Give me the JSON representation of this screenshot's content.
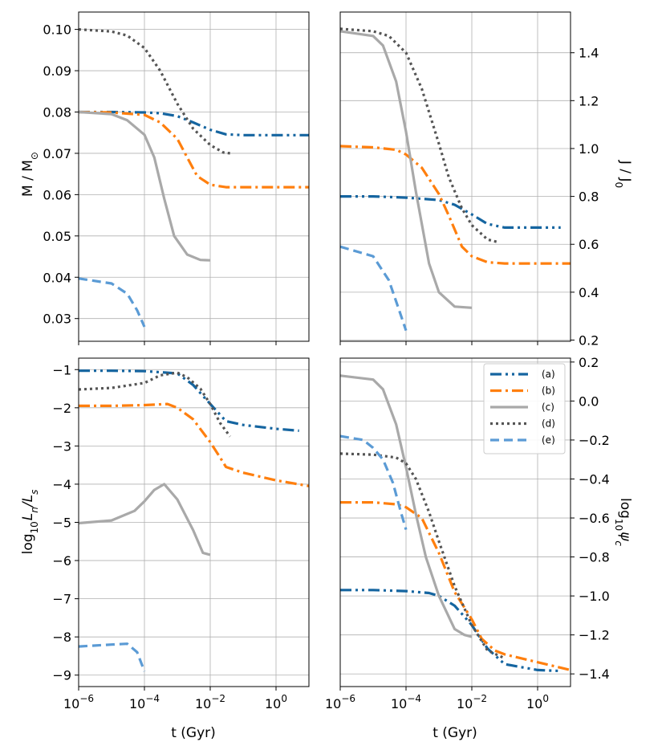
{
  "chart_data": [
    {
      "panel": "top-left",
      "type": "line",
      "ylabel": "M / M☉",
      "xlabel": "",
      "xscale": "log",
      "xlim": [
        1e-06,
        10
      ],
      "ylim": [
        0.0245,
        0.1042
      ],
      "yticks": [
        0.03,
        0.04,
        0.05,
        0.06,
        0.07,
        0.08,
        0.09,
        0.1
      ],
      "ytick_labels": [
        "0.03",
        "0.04",
        "0.05",
        "0.06",
        "0.07",
        "0.08",
        "0.09",
        "0.10"
      ],
      "y_axis_side": "left",
      "series": [
        {
          "key": "a",
          "x": [
            1e-06,
            1e-05,
            0.0001,
            0.0003,
            0.001,
            0.003,
            0.01,
            0.03,
            0.1,
            10
          ],
          "y": [
            0.08,
            0.08,
            0.0799,
            0.0797,
            0.079,
            0.0775,
            0.0757,
            0.0746,
            0.0744,
            0.0744
          ]
        },
        {
          "key": "b",
          "x": [
            1e-06,
            1e-05,
            0.0001,
            0.0003,
            0.001,
            0.002,
            0.004,
            0.01,
            0.03,
            10
          ],
          "y": [
            0.08,
            0.0799,
            0.0793,
            0.0775,
            0.0735,
            0.069,
            0.0645,
            0.0624,
            0.0618,
            0.0618
          ]
        },
        {
          "key": "c",
          "x": [
            1e-06,
            1e-05,
            3e-05,
            0.0001,
            0.0002,
            0.0004,
            0.0008,
            0.002,
            0.005,
            0.01
          ],
          "y": [
            0.08,
            0.0795,
            0.078,
            0.0745,
            0.069,
            0.059,
            0.05,
            0.0455,
            0.0442,
            0.0441
          ]
        },
        {
          "key": "d",
          "x": [
            1e-06,
            1e-05,
            3e-05,
            0.0001,
            0.0003,
            0.001,
            0.003,
            0.01,
            0.025,
            0.04
          ],
          "y": [
            0.1,
            0.0995,
            0.0985,
            0.0955,
            0.09,
            0.082,
            0.076,
            0.072,
            0.0702,
            0.07
          ]
        },
        {
          "key": "e",
          "x": [
            1e-06,
            1e-05,
            3e-05,
            6e-05,
            0.0001
          ],
          "y": [
            0.0397,
            0.0385,
            0.036,
            0.032,
            0.028
          ]
        }
      ]
    },
    {
      "panel": "top-right",
      "type": "line",
      "ylabel": "J / J0",
      "xlabel": "",
      "xscale": "log",
      "xlim": [
        1e-06,
        10
      ],
      "ylim": [
        0.195,
        1.57
      ],
      "yticks": [
        0.2,
        0.4,
        0.6,
        0.8,
        1.0,
        1.2,
        1.4
      ],
      "ytick_labels": [
        "0.2",
        "0.4",
        "0.6",
        "0.8",
        "1.0",
        "1.2",
        "1.4"
      ],
      "y_axis_side": "right",
      "series": [
        {
          "key": "a",
          "x": [
            1e-06,
            1e-05,
            0.0001,
            0.001,
            0.003,
            0.01,
            0.03,
            0.1,
            5
          ],
          "y": [
            0.8,
            0.8,
            0.795,
            0.785,
            0.765,
            0.725,
            0.685,
            0.67,
            0.67
          ]
        },
        {
          "key": "b",
          "x": [
            1e-06,
            1e-05,
            5e-05,
            0.0001,
            0.0003,
            0.001,
            0.002,
            0.005,
            0.01,
            0.03,
            0.1,
            10
          ],
          "y": [
            1.01,
            1.005,
            0.995,
            0.975,
            0.92,
            0.81,
            0.72,
            0.59,
            0.55,
            0.525,
            0.52,
            0.52
          ]
        },
        {
          "key": "c",
          "x": [
            1e-06,
            1e-05,
            2e-05,
            5e-05,
            0.0001,
            0.0002,
            0.0005,
            0.001,
            0.003,
            0.01
          ],
          "y": [
            1.49,
            1.47,
            1.43,
            1.28,
            1.07,
            0.82,
            0.52,
            0.4,
            0.34,
            0.335
          ]
        },
        {
          "key": "d",
          "x": [
            1e-06,
            1e-05,
            3e-05,
            0.0001,
            0.0003,
            0.001,
            0.002,
            0.005,
            0.01,
            0.03,
            0.06
          ],
          "y": [
            1.5,
            1.49,
            1.47,
            1.4,
            1.25,
            1.02,
            0.88,
            0.75,
            0.68,
            0.62,
            0.61
          ]
        },
        {
          "key": "e",
          "x": [
            1e-06,
            1e-05,
            3e-05,
            6e-05,
            0.0001
          ],
          "y": [
            0.59,
            0.55,
            0.45,
            0.33,
            0.24
          ]
        }
      ]
    },
    {
      "panel": "bottom-left",
      "type": "line",
      "ylabel": "log10 Ln/Ls",
      "xlabel": "t (Gyr)",
      "xscale": "log",
      "xlim": [
        1e-06,
        10
      ],
      "ylim": [
        -9.3,
        -0.7
      ],
      "yticks": [
        -9,
        -8,
        -7,
        -6,
        -5,
        -4,
        -3,
        -2,
        -1
      ],
      "ytick_labels": [
        "−9",
        "−8",
        "−7",
        "−6",
        "−5",
        "−4",
        "−3",
        "−2",
        "−1"
      ],
      "y_axis_side": "left",
      "series": [
        {
          "key": "a",
          "x": [
            1e-06,
            1e-05,
            0.0001,
            0.001,
            0.003,
            0.01,
            0.03,
            0.1,
            1,
            5
          ],
          "y": [
            -1.03,
            -1.03,
            -1.04,
            -1.1,
            -1.4,
            -1.9,
            -2.35,
            -2.45,
            -2.55,
            -2.6
          ]
        },
        {
          "key": "b",
          "x": [
            1e-06,
            1e-05,
            0.0001,
            0.0005,
            0.001,
            0.003,
            0.01,
            0.02,
            0.03,
            0.1,
            1,
            10
          ],
          "y": [
            -1.95,
            -1.95,
            -1.93,
            -1.9,
            -2.0,
            -2.3,
            -2.9,
            -3.3,
            -3.55,
            -3.7,
            -3.9,
            -4.05
          ]
        },
        {
          "key": "c",
          "x": [
            1e-06,
            1e-05,
            5e-05,
            0.0001,
            0.0002,
            0.0004,
            0.001,
            0.003,
            0.006,
            0.01
          ],
          "y": [
            -5.02,
            -4.95,
            -4.7,
            -4.45,
            -4.15,
            -4.0,
            -4.4,
            -5.2,
            -5.8,
            -5.85
          ]
        },
        {
          "key": "d",
          "x": [
            1e-06,
            1e-05,
            0.0001,
            0.0003,
            0.001,
            0.002,
            0.005,
            0.01,
            0.02,
            0.04
          ],
          "y": [
            -1.52,
            -1.48,
            -1.35,
            -1.15,
            -1.08,
            -1.2,
            -1.5,
            -1.9,
            -2.4,
            -2.75
          ]
        },
        {
          "key": "e",
          "x": [
            1e-06,
            1e-05,
            3e-05,
            6e-05,
            0.0001
          ],
          "y": [
            -8.25,
            -8.2,
            -8.18,
            -8.4,
            -8.9
          ]
        }
      ]
    },
    {
      "panel": "bottom-right",
      "type": "line",
      "ylabel": "log10 ψc",
      "xlabel": "t (Gyr)",
      "xscale": "log",
      "xlim": [
        1e-06,
        10
      ],
      "ylim": [
        -1.465,
        0.22
      ],
      "yticks": [
        -1.4,
        -1.2,
        -1.0,
        -0.8,
        -0.6,
        -0.4,
        -0.2,
        0.0,
        0.2
      ],
      "ytick_labels": [
        "−1.4",
        "−1.2",
        "−1.0",
        "−0.8",
        "−0.6",
        "−0.4",
        "−0.2",
        "0.0",
        "0.2"
      ],
      "y_axis_side": "right",
      "series": [
        {
          "key": "a",
          "x": [
            1e-06,
            1e-05,
            0.0001,
            0.0005,
            0.001,
            0.003,
            0.01,
            0.03,
            0.1,
            1,
            5
          ],
          "y": [
            -0.97,
            -0.97,
            -0.975,
            -0.985,
            -1.0,
            -1.05,
            -1.15,
            -1.27,
            -1.35,
            -1.38,
            -1.385
          ]
        },
        {
          "key": "b",
          "x": [
            1e-06,
            1e-05,
            5e-05,
            0.0001,
            0.0003,
            0.001,
            0.003,
            0.01,
            0.02,
            0.05,
            0.1,
            1,
            10
          ],
          "y": [
            -0.52,
            -0.52,
            -0.53,
            -0.545,
            -0.6,
            -0.78,
            -0.98,
            -1.12,
            -1.22,
            -1.28,
            -1.3,
            -1.34,
            -1.38
          ]
        },
        {
          "key": "c",
          "x": [
            1e-06,
            1e-05,
            2e-05,
            5e-05,
            0.0001,
            0.0002,
            0.0004,
            0.001,
            0.003,
            0.006,
            0.01
          ],
          "y": [
            0.13,
            0.11,
            0.06,
            -0.12,
            -0.34,
            -0.58,
            -0.8,
            -1.0,
            -1.17,
            -1.2,
            -1.21
          ]
        },
        {
          "key": "d",
          "x": [
            1e-06,
            1e-05,
            5e-05,
            0.0001,
            0.0002,
            0.0005,
            0.001,
            0.003,
            0.01,
            0.03,
            0.1
          ],
          "y": [
            -0.27,
            -0.275,
            -0.29,
            -0.32,
            -0.4,
            -0.57,
            -0.72,
            -0.95,
            -1.15,
            -1.28,
            -1.32
          ]
        },
        {
          "key": "e",
          "x": [
            1e-06,
            5e-06,
            1e-05,
            2e-05,
            4e-05,
            7e-05,
            0.0001
          ],
          "y": [
            -0.18,
            -0.2,
            -0.24,
            -0.3,
            -0.42,
            -0.57,
            -0.66
          ]
        }
      ]
    }
  ],
  "xtick_labels": [
    "−6",
    "−4",
    "−2",
    "0"
  ],
  "xtick_values": [
    1e-06,
    0.0001,
    0.01,
    1
  ],
  "xtick_base": "10",
  "axis_labels": {
    "tl_y": {
      "prefix": "M / M",
      "sub": "⊙"
    },
    "tr_y": {
      "prefix": "J / J",
      "sub": "0"
    },
    "bl_y": {
      "base": "log",
      "sub1": "10",
      "mid": "L",
      "sub2": "n",
      "tail": "/L",
      "sub3": "s"
    },
    "br_y": {
      "base": "log",
      "sub1": "10",
      "mid": "ψ",
      "sub2": "c"
    },
    "x": "t (Gyr)"
  },
  "legend": {
    "placement": "upper-right of bottom-right panel",
    "entries": [
      {
        "key": "a",
        "label": "(a)"
      },
      {
        "key": "b",
        "label": "(b)"
      },
      {
        "key": "c",
        "label": "(c)"
      },
      {
        "key": "d",
        "label": "(d)"
      },
      {
        "key": "e",
        "label": "(e)"
      }
    ]
  },
  "styles": {
    "a": {
      "color": "#1565a0",
      "dash": "14 5 3 5 3 5"
    },
    "b": {
      "color": "#ff7f0e",
      "dash": "14 5 3 5"
    },
    "c": {
      "color": "#a9a9a9",
      "dash": ""
    },
    "d": {
      "color": "#555555",
      "dash": "3 4"
    },
    "e": {
      "color": "#5b9bd5",
      "dash": "11 6"
    }
  }
}
